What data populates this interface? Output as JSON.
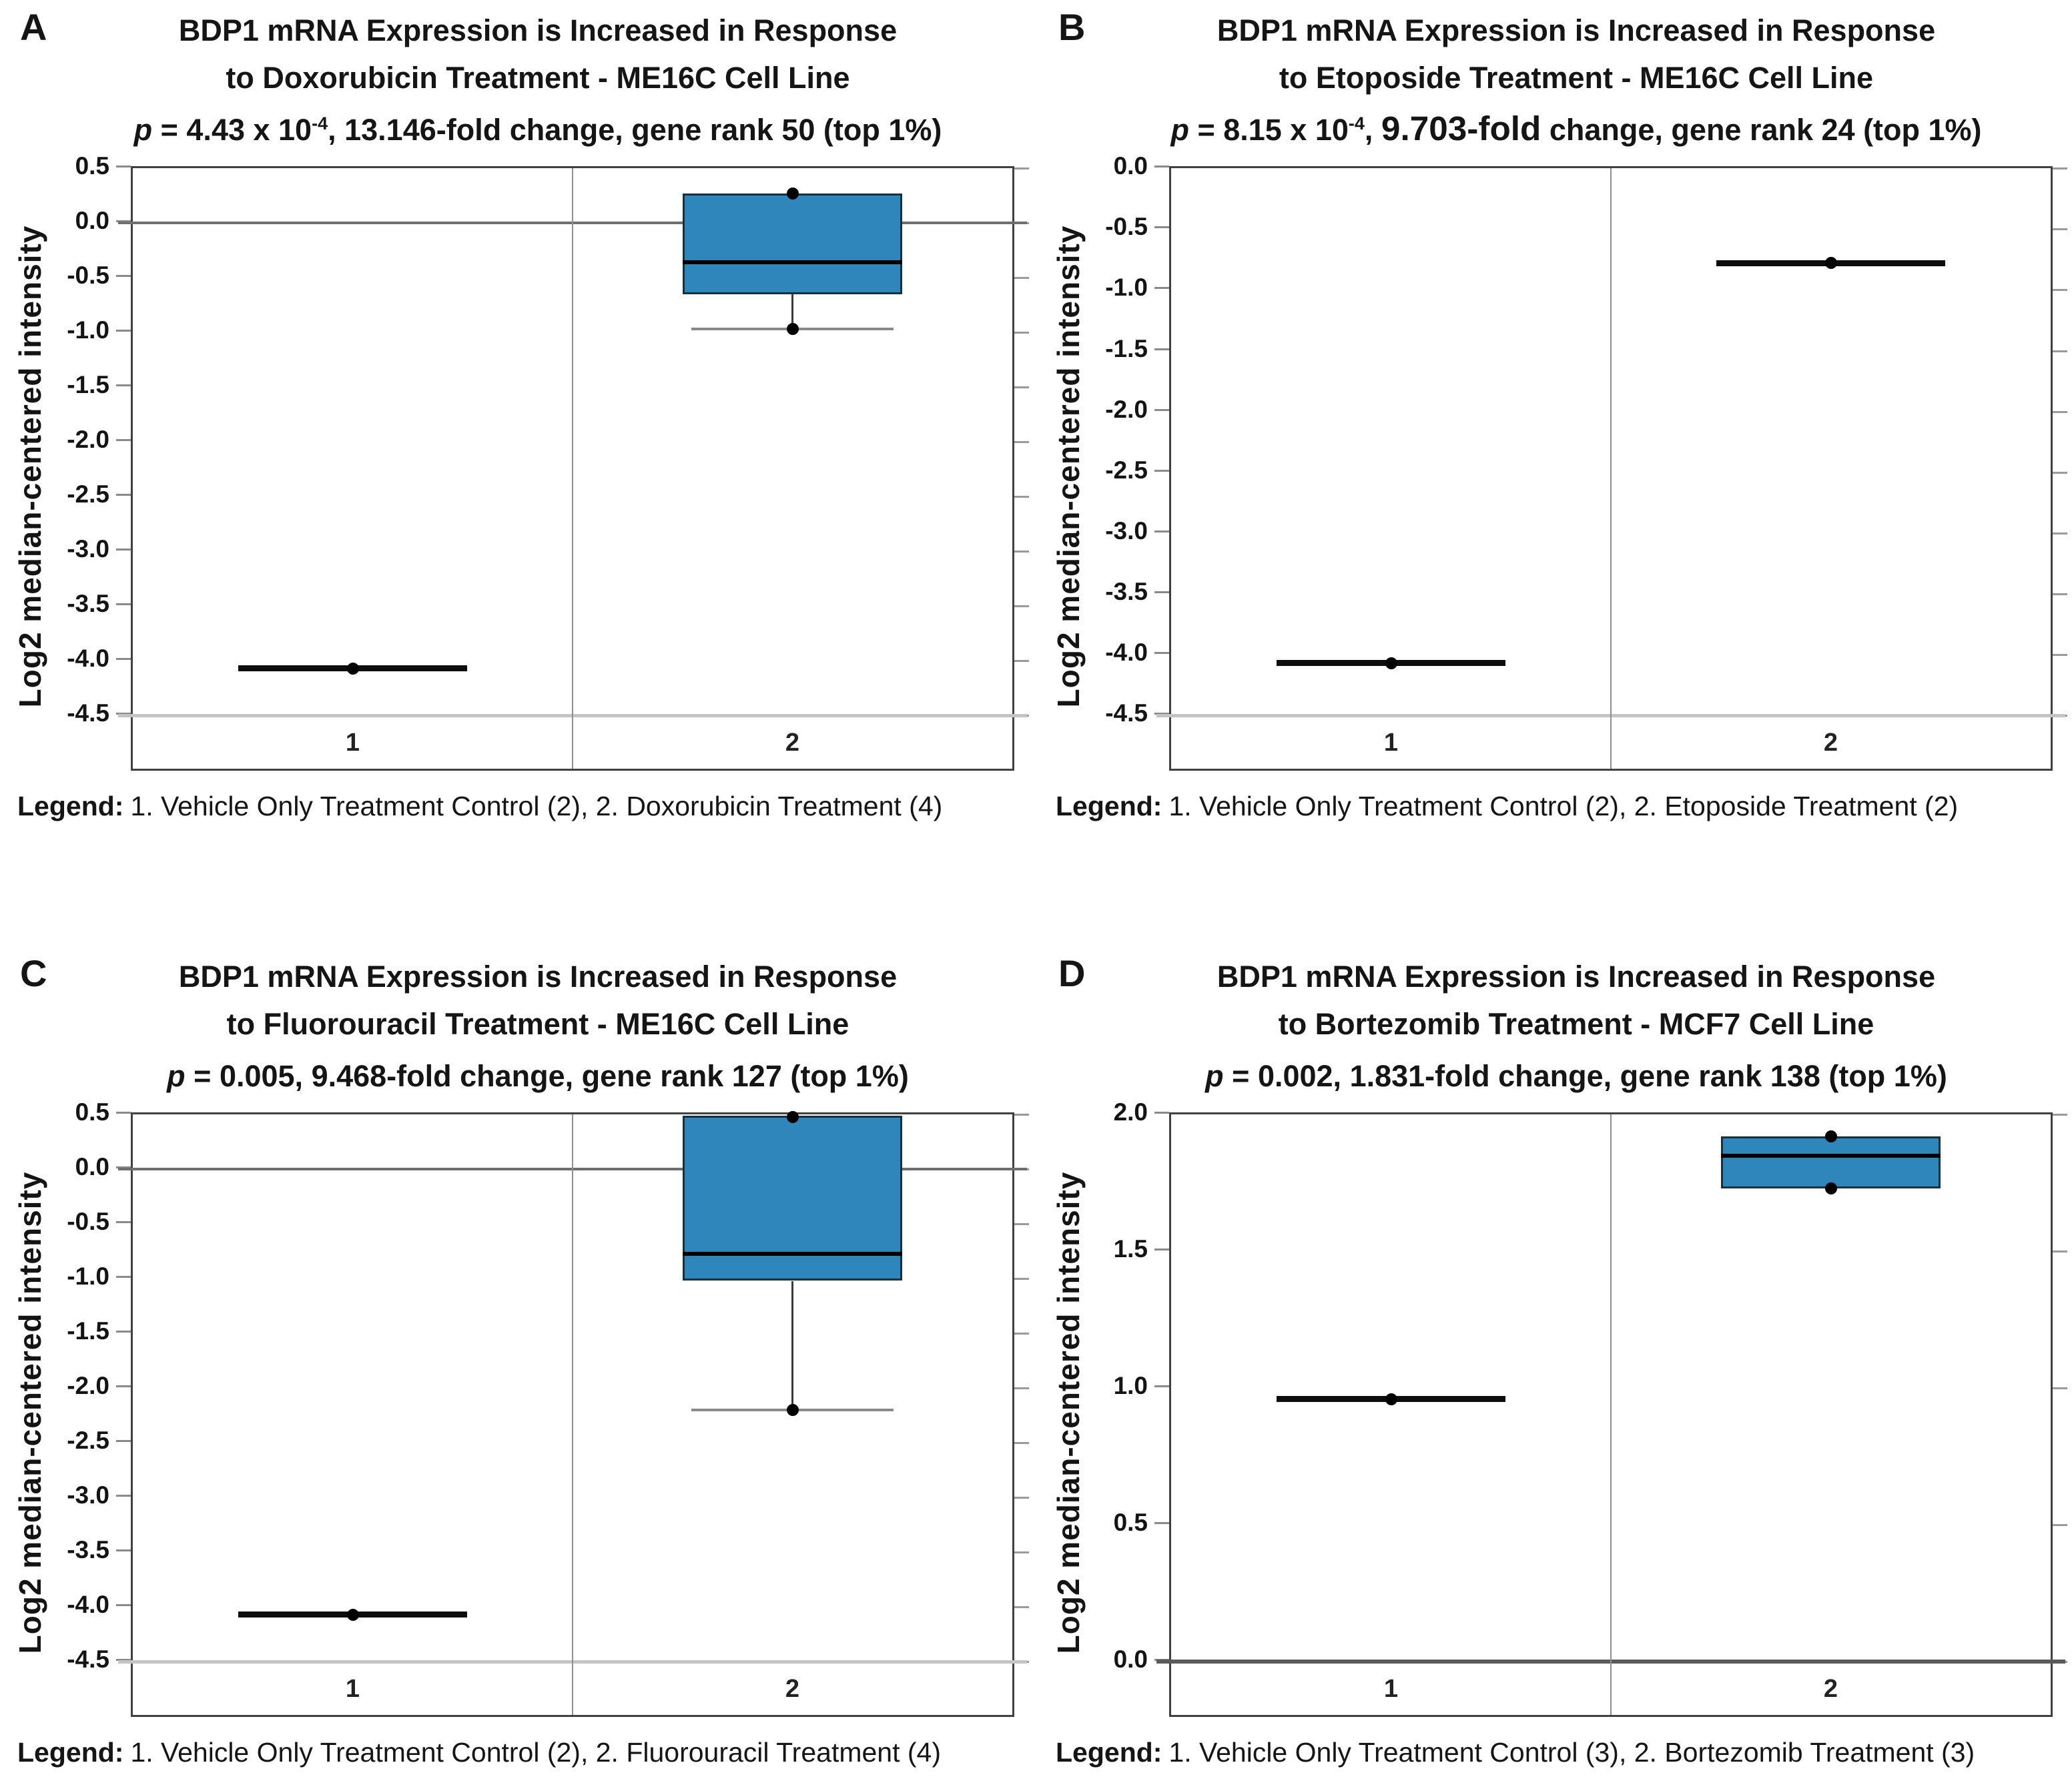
{
  "figure": {
    "panels": [
      {
        "letter": "A",
        "title_line1": "BDP1 mRNA Expression is Increased in Response",
        "title_line2": "to Doxorubicin Treatment - ME16C Cell Line",
        "p_line": {
          "p": "p",
          "eq": " = 4.43 x 10",
          "sup": "-4",
          "mid": ", ",
          "big": "",
          "rest": "13.146-fold change, gene rank 50 (top 1%)"
        },
        "ylabel": "Log2 median-centered intensity",
        "legend_label": "Legend:",
        "legend_text": "1. Vehicle Only Treatment Control (2), 2. Doxorubicin Treatment (4)"
      },
      {
        "letter": "B",
        "title_line1": "BDP1 mRNA Expression is Increased in Response",
        "title_line2": "to Etoposide Treatment - ME16C Cell Line",
        "p_line": {
          "p": "p",
          "eq": " = 8.15 x 10",
          "sup": "-4",
          "mid": ", ",
          "big": "9.703-fold",
          "rest": " change, gene rank 24 (top 1%)"
        },
        "ylabel": "Log2 median-centered intensity",
        "legend_label": "Legend:",
        "legend_text": "1. Vehicle Only Treatment Control (2), 2. Etoposide Treatment (2)"
      },
      {
        "letter": "C",
        "title_line1": "BDP1 mRNA Expression is Increased in Response",
        "title_line2": "to Fluorouracil Treatment - ME16C Cell Line",
        "p_line": {
          "p": "p",
          "eq": " = 0.005, ",
          "sup": "",
          "mid": "",
          "big": "",
          "rest": "9.468-fold change, gene rank 127 (top 1%)"
        },
        "ylabel": "Log2 median-centered intensity",
        "legend_label": "Legend:",
        "legend_text": "1. Vehicle Only Treatment Control (2), 2. Fluorouracil Treatment (4)"
      },
      {
        "letter": "D",
        "title_line1": "BDP1 mRNA Expression is Increased in Response",
        "title_line2": "to Bortezomib Treatment - MCF7 Cell Line",
        "p_line": {
          "p": "p",
          "eq": " = 0.002, ",
          "sup": "",
          "mid": "",
          "big": "",
          "rest": "1.831-fold change, gene rank 138 (top 1%)"
        },
        "ylabel": "Log2 median-centered intensity",
        "legend_label": "Legend:",
        "legend_text": "1. Vehicle Only Treatment Control (3), 2. Bortezomib Treatment (3)"
      }
    ]
  },
  "chart_data": [
    {
      "type": "box",
      "panel": "A",
      "title": "BDP1 mRNA Expression is Increased in Response to Doxorubicin Treatment - ME16C Cell Line",
      "subtitle": "p = 4.43 x 10^-4, 13.146-fold change, gene rank 50 (top 1%)",
      "ylabel": "Log2 median-centered intensity",
      "ymax": 0.5,
      "ymin": -4.5,
      "ticks": [
        0.5,
        0.0,
        -0.5,
        -1.0,
        -1.5,
        -2.0,
        -2.5,
        -3.0,
        -3.5,
        -4.0,
        -4.5
      ],
      "categories": [
        "1",
        "2"
      ],
      "groups": [
        {
          "category": "1",
          "name": "Vehicle Only Treatment Control (2)",
          "kind": "line",
          "value": -4.07,
          "points": [
            -4.07
          ]
        },
        {
          "category": "2",
          "name": "Doxorubicin Treatment (4)",
          "kind": "box",
          "q1": -0.65,
          "median": -0.36,
          "q3": 0.27,
          "whisker_low": -0.97,
          "points": [
            0.27,
            -0.97
          ]
        }
      ],
      "reference_lines": [
        {
          "value": 0.0,
          "color": "#6e6e6e",
          "width": 4
        },
        {
          "value": -4.5,
          "color": "#c4c4c4",
          "width": 5
        }
      ],
      "box_fill": "#2e86bb",
      "legend": "1. Vehicle Only Treatment Control (2), 2. Doxorubicin Treatment (4)"
    },
    {
      "type": "box",
      "panel": "B",
      "title": "BDP1 mRNA Expression is Increased in Response to Etoposide Treatment - ME16C Cell Line",
      "subtitle": "p = 8.15 x 10^-4, 9.703-fold change, gene rank 24 (top 1%)",
      "ylabel": "Log2 median-centered intensity",
      "ymax": 0.0,
      "ymin": -4.5,
      "ticks": [
        0.0,
        -0.5,
        -1.0,
        -1.5,
        -2.0,
        -2.5,
        -3.0,
        -3.5,
        -4.0,
        -4.5
      ],
      "categories": [
        "1",
        "2"
      ],
      "groups": [
        {
          "category": "1",
          "name": "Vehicle Only Treatment Control (2)",
          "kind": "line",
          "value": -4.07,
          "points": [
            -4.07
          ]
        },
        {
          "category": "2",
          "name": "Etoposide Treatment (2)",
          "kind": "line",
          "value": -0.78,
          "points": [
            -0.78
          ]
        }
      ],
      "reference_lines": [
        {
          "value": -4.5,
          "color": "#c4c4c4",
          "width": 5
        }
      ],
      "box_fill": "#2e86bb",
      "legend": "1. Vehicle Only Treatment Control (2), 2. Etoposide Treatment (2)"
    },
    {
      "type": "box",
      "panel": "C",
      "title": "BDP1 mRNA Expression is Increased in Response to Fluorouracil Treatment - ME16C Cell Line",
      "subtitle": "p = 0.005, 9.468-fold change, gene rank 127 (top 1%)",
      "ylabel": "Log2 median-centered intensity",
      "ymax": 0.5,
      "ymin": -4.5,
      "ticks": [
        0.5,
        0.0,
        -0.5,
        -1.0,
        -1.5,
        -2.0,
        -2.5,
        -3.0,
        -3.5,
        -4.0,
        -4.5
      ],
      "categories": [
        "1",
        "2"
      ],
      "groups": [
        {
          "category": "1",
          "name": "Vehicle Only Treatment Control (2)",
          "kind": "line",
          "value": -4.07,
          "points": [
            -4.07
          ]
        },
        {
          "category": "2",
          "name": "Fluorouracil Treatment (4)",
          "kind": "box",
          "q1": -1.02,
          "median": -0.77,
          "q3": 0.49,
          "whisker_low": -2.2,
          "points": [
            0.48,
            -2.2
          ]
        }
      ],
      "reference_lines": [
        {
          "value": 0.0,
          "color": "#6e6e6e",
          "width": 4
        },
        {
          "value": -4.5,
          "color": "#c4c4c4",
          "width": 5
        }
      ],
      "box_fill": "#2e86bb",
      "legend": "1. Vehicle Only Treatment Control (2), 2. Fluorouracil Treatment (4)"
    },
    {
      "type": "box",
      "panel": "D",
      "title": "BDP1 mRNA Expression is Increased in Response to Bortezomib Treatment - MCF7 Cell Line",
      "subtitle": "p = 0.002, 1.831-fold change, gene rank 138 (top 1%)",
      "ylabel": "Log2 median-centered intensity",
      "ymax": 2.0,
      "ymin": 0.0,
      "ticks": [
        2.0,
        1.5,
        1.0,
        0.5,
        0.0
      ],
      "categories": [
        "1",
        "2"
      ],
      "groups": [
        {
          "category": "1",
          "name": "Vehicle Only Treatment Control (3)",
          "kind": "line",
          "value": 0.96,
          "points": [
            0.96
          ]
        },
        {
          "category": "2",
          "name": "Bortezomib Treatment (3)",
          "kind": "box",
          "q1": 1.73,
          "median": 1.85,
          "q3": 1.92,
          "points": [
            1.92,
            1.73
          ]
        }
      ],
      "reference_lines": [
        {
          "value": 0.0,
          "color": "#5a5a5a",
          "width": 6
        }
      ],
      "box_fill": "#2e86bb",
      "legend": "1. Vehicle Only Treatment Control (3), 2. Bortezomib Treatment (3)"
    }
  ]
}
